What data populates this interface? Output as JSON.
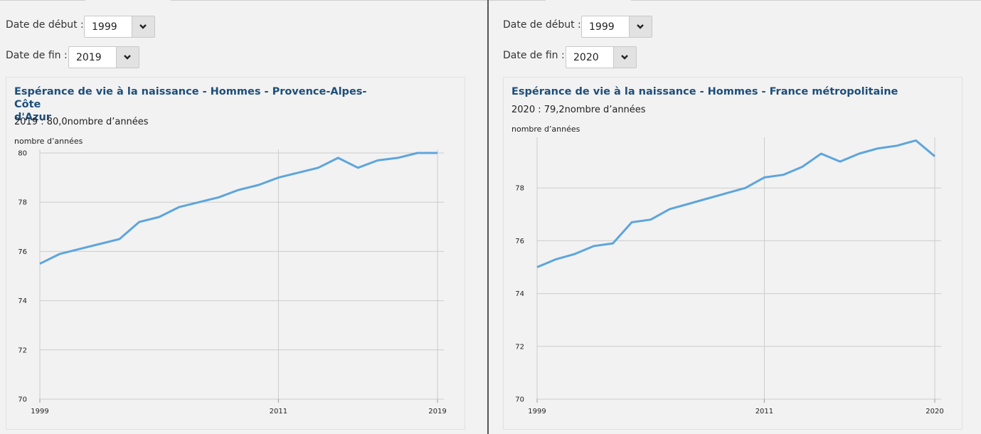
{
  "left": {
    "start_label": "Date de début :",
    "start_value": "1999",
    "end_label": "Date de fin :",
    "end_value": "2019",
    "chart_title": "Espérance de vie à la naissance - Hommes - Provence-Alpes-Côte d'Azur",
    "chart_title_line1": "Espérance de vie à la naissance - Hommes - Provence-Alpes-Côte",
    "chart_title_line2": "d'Azur",
    "chart_subtitle": "2019 : 80,0nombre d’années",
    "unit": "nombre d’années"
  },
  "right": {
    "start_label": "Date de début :",
    "start_value": "1999",
    "end_label": "Date de fin :",
    "end_value": "2020",
    "chart_title": "Espérance de vie à la naissance - Hommes - France métropolitaine",
    "chart_subtitle": "2020 : 79,2nombre d’années",
    "unit": "nombre d’années"
  },
  "colors": {
    "line": "#5da5dd",
    "title": "#1d4e7a",
    "grid": "#cccccc"
  },
  "icons": {
    "dropdown": "chevron-down-icon"
  },
  "chart_data": [
    {
      "type": "line",
      "title": "Espérance de vie à la naissance - Hommes - Provence-Alpes-Côte d'Azur",
      "ylabel": "nombre d’années",
      "x": [
        1999,
        2000,
        2001,
        2002,
        2003,
        2004,
        2005,
        2006,
        2007,
        2008,
        2009,
        2010,
        2011,
        2012,
        2013,
        2014,
        2015,
        2016,
        2017,
        2018,
        2019
      ],
      "series": [
        {
          "values": [
            75.5,
            75.9,
            76.1,
            76.3,
            76.5,
            77.2,
            77.4,
            77.8,
            78.0,
            78.2,
            78.5,
            78.7,
            79.0,
            79.2,
            79.4,
            79.8,
            79.4,
            79.7,
            79.8,
            80.0,
            80.0
          ]
        }
      ],
      "xlim": [
        1999,
        2019
      ],
      "ylim": [
        70,
        80
      ],
      "yticks": [
        70,
        72,
        74,
        76,
        78,
        80
      ],
      "xticks": [
        1999,
        2011,
        2019
      ],
      "grid": true
    },
    {
      "type": "line",
      "title": "Espérance de vie à la naissance - Hommes - France métropolitaine",
      "ylabel": "nombre d’années",
      "x": [
        1999,
        2000,
        2001,
        2002,
        2003,
        2004,
        2005,
        2006,
        2007,
        2008,
        2009,
        2010,
        2011,
        2012,
        2013,
        2014,
        2015,
        2016,
        2017,
        2018,
        2019,
        2020
      ],
      "series": [
        {
          "values": [
            75.0,
            75.3,
            75.5,
            75.8,
            75.9,
            76.7,
            76.8,
            77.2,
            77.4,
            77.6,
            77.8,
            78.0,
            78.4,
            78.5,
            78.8,
            79.3,
            79.0,
            79.3,
            79.5,
            79.6,
            79.8,
            79.2
          ]
        }
      ],
      "xlim": [
        1999,
        2020
      ],
      "ylim": [
        70,
        80
      ],
      "yticks": [
        70,
        72,
        74,
        76,
        78
      ],
      "xticks": [
        1999,
        2011,
        2020
      ],
      "grid": true
    }
  ]
}
